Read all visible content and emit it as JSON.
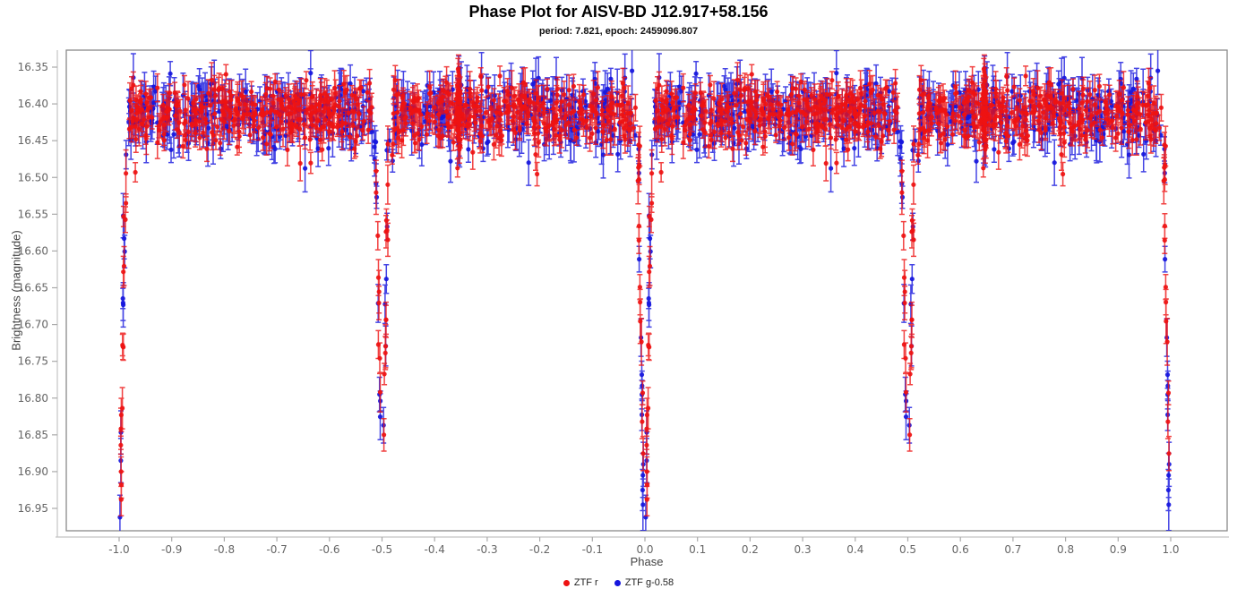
{
  "header": {
    "title": "Phase Plot for AISV-BD J12.917+58.156",
    "subtitle": "period: 7.821, epoch: 2459096.807"
  },
  "chart_data": {
    "type": "scatter",
    "title": "Phase Plot for AISV-BD J12.917+58.156",
    "subtitle": "period: 7.821, epoch: 2459096.807",
    "xlabel": "Phase",
    "ylabel": "Brightness (magnitude)",
    "x_ticks": [
      "-1.0",
      "-0.9",
      "-0.8",
      "-0.7",
      "-0.6",
      "-0.5",
      "-0.4",
      "-0.3",
      "-0.2",
      "-0.1",
      "0.0",
      "0.1",
      "0.2",
      "0.3",
      "0.4",
      "0.5",
      "0.6",
      "0.7",
      "0.8",
      "0.9",
      "1.0"
    ],
    "y_ticks": [
      "16.35",
      "16.40",
      "16.45",
      "16.50",
      "16.55",
      "16.60",
      "16.65",
      "16.70",
      "16.75",
      "16.80",
      "16.85",
      "16.90",
      "16.95"
    ],
    "xlim": [
      -1.1,
      1.1
    ],
    "ylim": [
      16.98,
      16.33
    ],
    "y_axis_inverted": true,
    "grid": false,
    "legend_position": "bottom-center",
    "marker": "circle-with-error-bars",
    "series": [
      {
        "name": "ZTF r",
        "color": "#ee1212",
        "typical_err_mag": [
          0.01,
          0.024
        ]
      },
      {
        "name": "ZTF g-0.58",
        "color": "#1616dd",
        "typical_err_mag": [
          0.013,
          0.034
        ]
      }
    ],
    "summary": {
      "out_of_eclipse_mag_range": "16.36-16.48",
      "out_of_eclipse_mean_mag": 16.414,
      "primary_eclipse_phases": [
        -1.0,
        0.0,
        1.0
      ],
      "primary_eclipse_min_mag": 16.97,
      "secondary_eclipse_phases": [
        -0.5,
        0.5
      ],
      "secondary_eclipse_min_mag": 16.86,
      "eclipse_full_width_phase": 0.035,
      "data_duplicated_over": "phase -1 to +1"
    },
    "pattern": {
      "seed": 20,
      "phase_copies": [
        0,
        -1
      ],
      "band": {
        "center": 16.414,
        "sigma": [
          0.019,
          0.023
        ],
        "top_min": 16.354,
        "tail_frac": 0.05,
        "tail_mag": 0.045,
        "eclipse_gap": 0.018,
        "counts": [
          640,
          480
        ],
        "err": [
          [
            0.01,
            0.024
          ],
          [
            0.013,
            0.034
          ]
        ]
      },
      "streak": {
        "phase": 0.646,
        "width": 0.006,
        "counts": [
          58,
          16
        ]
      },
      "eclipses": [
        {
          "center": 0.0,
          "chain": 36,
          "shoulder": 8,
          "top_depth": 0.075,
          "max_depth": 0.47,
          "hw_top": 0.0115,
          "hw_bottom": 0.0035,
          "deep": [
            {
              "dp": 0.0038,
              "mag": 16.9,
              "c": "r",
              "err": 0.02
            },
            {
              "dp": 0.0042,
              "mag": 16.918,
              "c": "r",
              "err": 0.018
            },
            {
              "dp": 0.004,
              "mag": 16.938,
              "c": "r",
              "err": 0.022
            },
            {
              "dp": 0.0032,
              "mag": 16.885,
              "c": "b",
              "err": 0.03
            },
            {
              "dp": -0.004,
              "mag": 16.905,
              "c": "b",
              "err": 0.03
            },
            {
              "dp": -0.0044,
              "mag": 16.925,
              "c": "b",
              "err": 0.028
            },
            {
              "dp": -0.0038,
              "mag": 16.945,
              "c": "b",
              "err": 0.035
            },
            {
              "dp": -0.003,
              "mag": 16.89,
              "c": "b",
              "err": 0.03
            },
            {
              "dp": 0.0015,
              "mag": 16.962,
              "c": "b",
              "err": 0.03
            }
          ]
        },
        {
          "center": 0.5,
          "chain": 30,
          "shoulder": 8,
          "top_depth": 0.07,
          "max_depth": 0.43,
          "hw_top": 0.011,
          "hw_bottom": 0.003,
          "deep": []
        }
      ]
    }
  },
  "legend": {
    "items": [
      {
        "label": "ZTF r",
        "color": "#ee1212"
      },
      {
        "label": "ZTF g-0.58",
        "color": "#1616dd"
      }
    ]
  }
}
